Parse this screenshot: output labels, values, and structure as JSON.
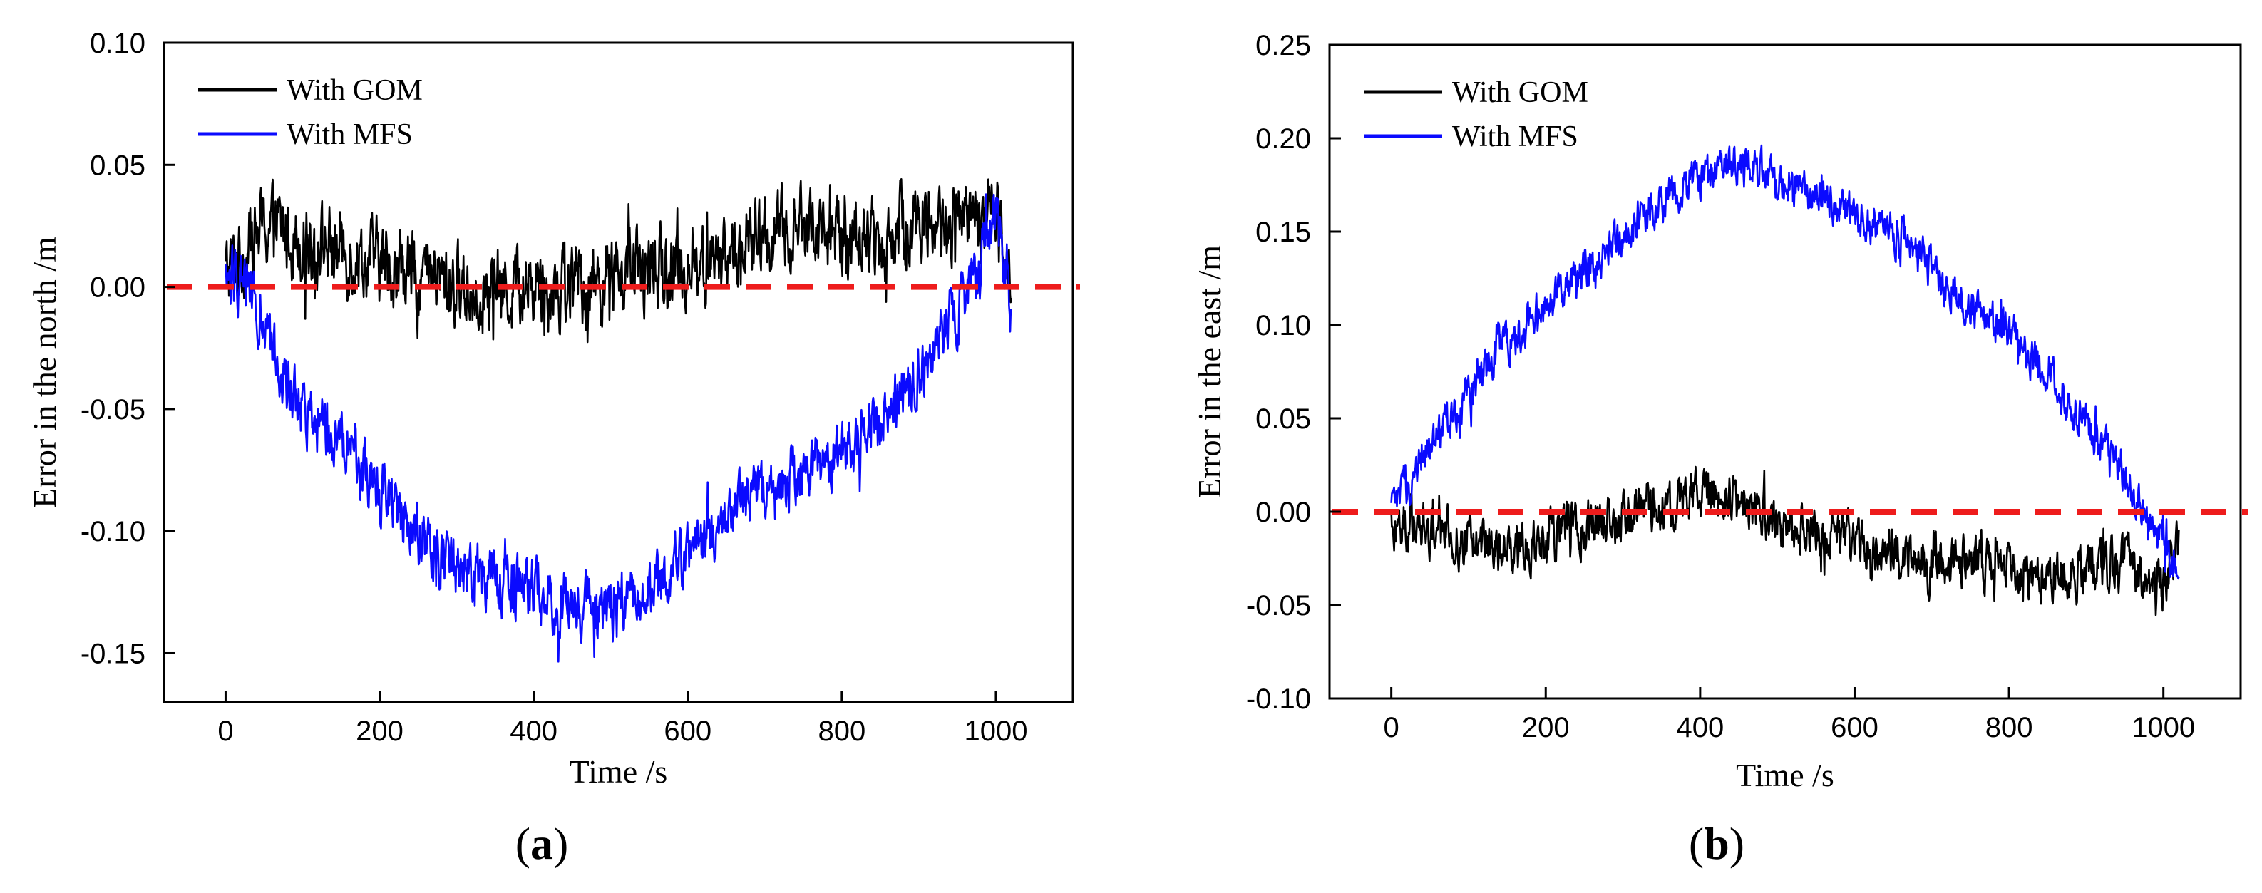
{
  "chart_data": [
    {
      "type": "line",
      "panel_label": "(a)",
      "panel_letter": "a",
      "xlabel": "Time /s",
      "ylabel": "Error in the north /m",
      "xlim": [
        -80,
        1100
      ],
      "ylim": [
        -0.17,
        0.1
      ],
      "xticks": [
        0,
        200,
        400,
        600,
        800,
        1000
      ],
      "yticks": [
        -0.15,
        -0.1,
        -0.05,
        0.0,
        0.05,
        0.1
      ],
      "xtick_labels": [
        "0",
        "200",
        "400",
        "600",
        "800",
        "1000"
      ],
      "ytick_labels": [
        "-0.15",
        "-0.10",
        "-0.05",
        "0.00",
        "0.05",
        "0.10"
      ],
      "legend_position": "top-left",
      "reference_line": {
        "y": 0.0,
        "color": "#ee1c1c",
        "style": "dashed"
      },
      "series": [
        {
          "name": "With GOM",
          "color": "#000000",
          "x": [
            0,
            50,
            100,
            150,
            200,
            250,
            300,
            350,
            400,
            450,
            500,
            550,
            600,
            650,
            700,
            750,
            800,
            850,
            900,
            950,
            1000,
            1020
          ],
          "values": [
            0.005,
            0.025,
            0.02,
            0.015,
            0.01,
            0.005,
            0.0,
            -0.002,
            0.002,
            0.0,
            0.004,
            0.006,
            0.008,
            0.012,
            0.02,
            0.025,
            0.02,
            0.018,
            0.028,
            0.025,
            0.03,
            0.01
          ],
          "noise": 0.013
        },
        {
          "name": "With MFS",
          "color": "#0a0aff",
          "x": [
            0,
            30,
            50,
            80,
            100,
            150,
            200,
            250,
            300,
            350,
            400,
            450,
            500,
            550,
            600,
            650,
            700,
            750,
            800,
            850,
            900,
            950,
            980,
            1000,
            1020
          ],
          "values": [
            0.005,
            0.0,
            -0.02,
            -0.04,
            -0.05,
            -0.065,
            -0.08,
            -0.1,
            -0.115,
            -0.12,
            -0.125,
            -0.132,
            -0.13,
            -0.125,
            -0.11,
            -0.095,
            -0.085,
            -0.075,
            -0.068,
            -0.055,
            -0.035,
            -0.01,
            0.01,
            0.03,
            -0.01
          ],
          "noise": 0.01
        }
      ]
    },
    {
      "type": "line",
      "panel_label": "(b)",
      "panel_letter": "b",
      "xlabel": "Time /s",
      "ylabel": "Error in the east /m",
      "xlim": [
        -80,
        1100
      ],
      "ylim": [
        -0.1,
        0.25
      ],
      "xticks": [
        0,
        200,
        400,
        600,
        800,
        1000
      ],
      "yticks": [
        -0.1,
        -0.05,
        0.0,
        0.05,
        0.1,
        0.15,
        0.2,
        0.25
      ],
      "xtick_labels": [
        "0",
        "200",
        "400",
        "600",
        "800",
        "1000"
      ],
      "ytick_labels": [
        "-0.10",
        "-0.05",
        "0.00",
        "0.05",
        "0.10",
        "0.15",
        "0.20",
        "0.25"
      ],
      "legend_position": "top-left",
      "reference_line": {
        "y": 0.0,
        "color": "#ee1c1c",
        "style": "dashed"
      },
      "series": [
        {
          "name": "With GOM",
          "color": "#000000",
          "x": [
            0,
            50,
            100,
            150,
            200,
            250,
            300,
            350,
            400,
            450,
            500,
            550,
            600,
            650,
            700,
            750,
            800,
            850,
            900,
            950,
            1000,
            1020
          ],
          "values": [
            -0.005,
            -0.01,
            -0.015,
            -0.02,
            -0.012,
            -0.008,
            -0.005,
            0.002,
            0.008,
            0.005,
            -0.008,
            -0.01,
            -0.015,
            -0.022,
            -0.028,
            -0.025,
            -0.03,
            -0.035,
            -0.032,
            -0.025,
            -0.04,
            -0.02
          ],
          "noise": 0.011
        },
        {
          "name": "With MFS",
          "color": "#0a0aff",
          "x": [
            0,
            50,
            100,
            150,
            200,
            250,
            300,
            350,
            400,
            450,
            500,
            550,
            600,
            650,
            700,
            750,
            800,
            850,
            900,
            950,
            1000,
            1020
          ],
          "values": [
            0.0,
            0.035,
            0.065,
            0.09,
            0.11,
            0.13,
            0.15,
            0.165,
            0.18,
            0.185,
            0.18,
            0.17,
            0.16,
            0.15,
            0.13,
            0.11,
            0.095,
            0.075,
            0.045,
            0.02,
            -0.02,
            -0.025
          ],
          "noise": 0.009
        }
      ]
    }
  ]
}
